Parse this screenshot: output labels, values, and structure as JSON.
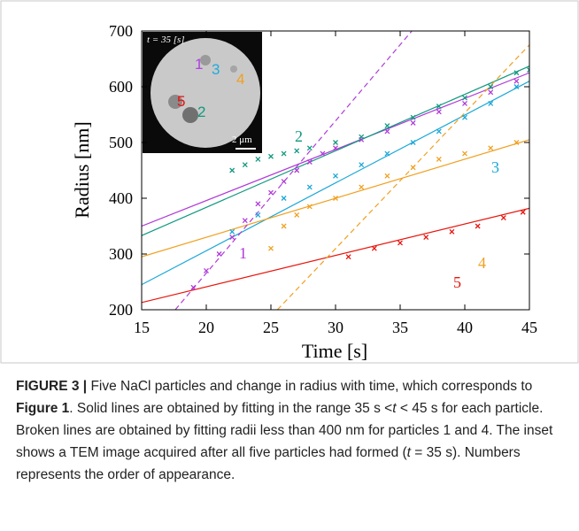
{
  "chart_data": {
    "type": "scatter",
    "x_label": "Time [s]",
    "y_label": "Radius [nm]",
    "xlim": [
      15,
      45
    ],
    "ylim": [
      200,
      700
    ],
    "xticks": [
      15,
      20,
      25,
      30,
      35,
      40,
      45
    ],
    "yticks": [
      200,
      300,
      400,
      500,
      600,
      700
    ],
    "series": [
      {
        "label": "1",
        "color": "#b03ad8",
        "x": [
          19,
          20,
          21,
          22,
          23,
          24,
          25,
          26,
          27,
          28,
          29,
          30,
          32,
          34,
          36,
          38,
          40,
          42,
          44
        ],
        "values": [
          240,
          270,
          300,
          330,
          360,
          390,
          410,
          430,
          450,
          465,
          480,
          490,
          505,
          520,
          535,
          555,
          570,
          590,
          610
        ]
      },
      {
        "label": "2",
        "color": "#11997f",
        "x": [
          22,
          23,
          24,
          25,
          26,
          27,
          28,
          30,
          32,
          34,
          36,
          38,
          40,
          42,
          44,
          45
        ],
        "values": [
          450,
          460,
          470,
          475,
          480,
          485,
          490,
          500,
          510,
          530,
          545,
          565,
          580,
          600,
          625,
          630
        ]
      },
      {
        "label": "3",
        "color": "#1aa7d8",
        "x": [
          22,
          24,
          26,
          28,
          30,
          32,
          34,
          36,
          38,
          40,
          42,
          44
        ],
        "values": [
          340,
          370,
          400,
          420,
          440,
          460,
          480,
          500,
          520,
          545,
          570,
          600
        ]
      },
      {
        "label": "4",
        "color": "#f0a020",
        "x": [
          25,
          26,
          27,
          28,
          30,
          32,
          34,
          36,
          38,
          40,
          42,
          44
        ],
        "values": [
          310,
          350,
          370,
          385,
          400,
          420,
          440,
          455,
          470,
          480,
          490,
          500
        ]
      },
      {
        "label": "5",
        "color": "#e8140c",
        "x": [
          31,
          33,
          35,
          37,
          39,
          41,
          43,
          44.5
        ],
        "values": [
          295,
          310,
          320,
          330,
          340,
          350,
          365,
          375
        ]
      }
    ],
    "fits": [
      {
        "color": "#b03ad8",
        "dashed": false,
        "x": [
          15,
          45
        ],
        "values": [
          350,
          625
        ]
      },
      {
        "color": "#11997f",
        "dashed": false,
        "x": [
          15,
          45
        ],
        "values": [
          333,
          637
        ]
      },
      {
        "color": "#1aa7d8",
        "dashed": false,
        "x": [
          15,
          45
        ],
        "values": [
          245,
          610
        ]
      },
      {
        "color": "#f0a020",
        "dashed": false,
        "x": [
          15,
          45
        ],
        "values": [
          295,
          505
        ]
      },
      {
        "color": "#e8140c",
        "dashed": false,
        "x": [
          15,
          45
        ],
        "values": [
          213,
          382
        ]
      },
      {
        "color": "#b03ad8",
        "dashed": true,
        "x": [
          17.6,
          35.9
        ],
        "values": [
          200,
          700
        ]
      },
      {
        "color": "#f0a020",
        "dashed": true,
        "x": [
          25.5,
          45
        ],
        "values": [
          200,
          675
        ]
      }
    ],
    "inset": {
      "caption": "t = 35 [s]",
      "labels": [
        {
          "text": "1",
          "color": "#b040e0"
        },
        {
          "text": "3",
          "color": "#22aadd"
        },
        {
          "text": "4",
          "color": "#f0a020"
        },
        {
          "text": "5",
          "color": "#e81010"
        },
        {
          "text": "2",
          "color": "#11997f"
        }
      ],
      "scale_bar": "2 μm"
    }
  },
  "caption": [
    {
      "text": "FIGURE 3 |",
      "style": "bold"
    },
    {
      "text": " Five NaCl particles and change in radius with time, which corresponds to ",
      "style": "normal"
    },
    {
      "text": "Figure 1",
      "style": "bold"
    },
    {
      "text": ". Solid lines are obtained by fitting in the range 35 s <",
      "style": "normal"
    },
    {
      "text": "t",
      "style": "italic"
    },
    {
      "text": " < 45 s for each particle. Broken lines are obtained by fitting radii less than 400 nm for particles 1 and 4. The inset shows a TEM image acquired after all five particles had formed (",
      "style": "normal"
    },
    {
      "text": "t",
      "style": "italic"
    },
    {
      "text": " = 35 s). Numbers represents the order of appearance.",
      "style": "normal"
    }
  ]
}
